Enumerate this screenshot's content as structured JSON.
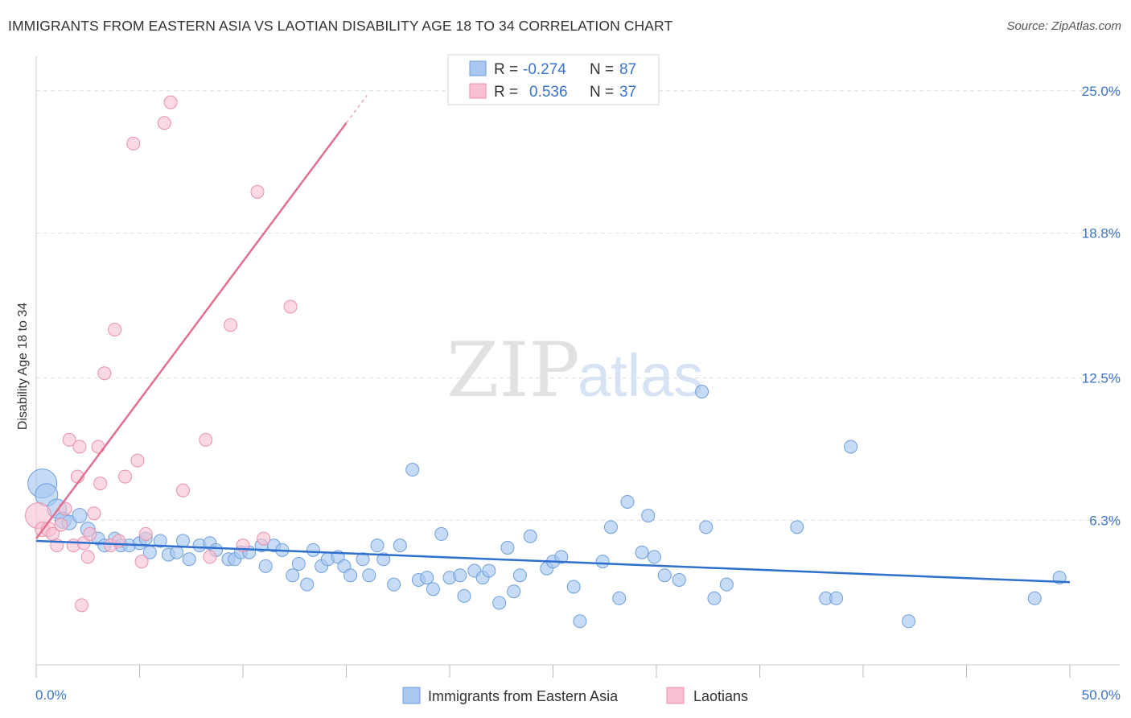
{
  "header": {
    "title": "IMMIGRANTS FROM EASTERN ASIA VS LAOTIAN DISABILITY AGE 18 TO 34 CORRELATION CHART",
    "source": "Source: ZipAtlas.com"
  },
  "watermark": {
    "zip": "ZIP",
    "atlas": "atlas"
  },
  "legend_top": {
    "rows": [
      {
        "r_label": "R =",
        "r_value": "-0.274",
        "n_label": "N =",
        "n_value": "87"
      },
      {
        "r_label": "R =",
        "r_value": "0.536",
        "n_label": "N =",
        "n_value": "37"
      }
    ]
  },
  "colors": {
    "blue_fill": "#a8c8f0",
    "blue_stroke": "#6f9fdc",
    "blue_line": "#2f6fce",
    "pink_fill": "#f8c0d2",
    "pink_stroke": "#e890ac",
    "pink_line": "#e0708f",
    "axis_text": "#3a74c8",
    "grid": "#dddddd"
  },
  "chart_data": {
    "type": "scatter",
    "title": "IMMIGRANTS FROM EASTERN ASIA VS LAOTIAN DISABILITY AGE 18 TO 34 CORRELATION CHART",
    "xlabel": "",
    "ylabel": "Disability Age 18 to 34",
    "xlim": [
      0,
      50
    ],
    "ylim": [
      0,
      26.5
    ],
    "x_tick_labels": [
      "0.0%",
      "50.0%"
    ],
    "y_ticks": [
      6.3,
      12.5,
      18.8,
      25.0
    ],
    "y_tick_labels": [
      "6.3%",
      "12.5%",
      "18.8%",
      "25.0%"
    ],
    "grid": true,
    "legend_placement": "top-center",
    "series": [
      {
        "name": "Immigrants from Eastern Asia",
        "color": "#a8c8f0",
        "r": -0.274,
        "n": 87,
        "trend": {
          "x": [
            0,
            50
          ],
          "y": [
            5.4,
            3.6
          ]
        },
        "points": [
          [
            0.3,
            7.9,
            18
          ],
          [
            0.5,
            7.4,
            14
          ],
          [
            1.0,
            6.8,
            12
          ],
          [
            1.3,
            6.3,
            10
          ],
          [
            1.6,
            6.2,
            9
          ],
          [
            2.1,
            6.5,
            9
          ],
          [
            2.5,
            5.9,
            9
          ],
          [
            3.0,
            5.5,
            8
          ],
          [
            3.3,
            5.2,
            8
          ],
          [
            3.8,
            5.5,
            8
          ],
          [
            4.1,
            5.2,
            8
          ],
          [
            4.5,
            5.2,
            8
          ],
          [
            5.0,
            5.3,
            8
          ],
          [
            5.3,
            5.5,
            8
          ],
          [
            5.5,
            4.9,
            8
          ],
          [
            6.0,
            5.4,
            8
          ],
          [
            6.4,
            4.8,
            8
          ],
          [
            6.8,
            4.9,
            8
          ],
          [
            7.1,
            5.4,
            8
          ],
          [
            7.4,
            4.6,
            8
          ],
          [
            7.9,
            5.2,
            8
          ],
          [
            8.4,
            5.3,
            8
          ],
          [
            8.7,
            5.0,
            8
          ],
          [
            9.3,
            4.6,
            8
          ],
          [
            9.6,
            4.6,
            8
          ],
          [
            9.9,
            4.9,
            8
          ],
          [
            10.3,
            4.9,
            8
          ],
          [
            10.9,
            5.2,
            8
          ],
          [
            11.1,
            4.3,
            8
          ],
          [
            11.5,
            5.2,
            8
          ],
          [
            11.9,
            5.0,
            8
          ],
          [
            12.4,
            3.9,
            8
          ],
          [
            12.7,
            4.4,
            8
          ],
          [
            13.1,
            3.5,
            8
          ],
          [
            13.4,
            5.0,
            8
          ],
          [
            13.8,
            4.3,
            8
          ],
          [
            14.1,
            4.6,
            8
          ],
          [
            14.6,
            4.7,
            8
          ],
          [
            14.9,
            4.3,
            8
          ],
          [
            15.2,
            3.9,
            8
          ],
          [
            15.8,
            4.6,
            8
          ],
          [
            16.1,
            3.9,
            8
          ],
          [
            16.5,
            5.2,
            8
          ],
          [
            16.8,
            4.6,
            8
          ],
          [
            17.3,
            3.5,
            8
          ],
          [
            17.6,
            5.2,
            8
          ],
          [
            18.2,
            8.5,
            8
          ],
          [
            18.5,
            3.7,
            8
          ],
          [
            18.9,
            3.8,
            8
          ],
          [
            19.2,
            3.3,
            8
          ],
          [
            19.6,
            5.7,
            8
          ],
          [
            20.0,
            3.8,
            8
          ],
          [
            20.5,
            3.9,
            8
          ],
          [
            20.7,
            3.0,
            8
          ],
          [
            21.2,
            4.1,
            8
          ],
          [
            21.6,
            3.8,
            8
          ],
          [
            21.9,
            4.1,
            8
          ],
          [
            22.4,
            2.7,
            8
          ],
          [
            22.8,
            5.1,
            8
          ],
          [
            23.1,
            3.2,
            8
          ],
          [
            23.4,
            3.9,
            8
          ],
          [
            23.9,
            5.6,
            8
          ],
          [
            24.7,
            4.2,
            8
          ],
          [
            25.0,
            4.5,
            8
          ],
          [
            25.4,
            4.7,
            8
          ],
          [
            26.0,
            3.4,
            8
          ],
          [
            26.3,
            1.9,
            8
          ],
          [
            27.4,
            4.5,
            8
          ],
          [
            27.8,
            6.0,
            8
          ],
          [
            28.2,
            2.9,
            8
          ],
          [
            28.6,
            7.1,
            8
          ],
          [
            29.3,
            4.9,
            8
          ],
          [
            29.6,
            6.5,
            8
          ],
          [
            29.9,
            4.7,
            8
          ],
          [
            30.4,
            3.9,
            8
          ],
          [
            31.1,
            3.7,
            8
          ],
          [
            32.2,
            11.9,
            8
          ],
          [
            32.4,
            6.0,
            8
          ],
          [
            32.8,
            2.9,
            8
          ],
          [
            33.4,
            3.5,
            8
          ],
          [
            36.8,
            6.0,
            8
          ],
          [
            38.2,
            2.9,
            8
          ],
          [
            38.7,
            2.9,
            8
          ],
          [
            39.4,
            9.5,
            8
          ],
          [
            42.2,
            1.9,
            8
          ],
          [
            48.3,
            2.9,
            8
          ],
          [
            49.5,
            3.8,
            8
          ]
        ]
      },
      {
        "name": "Laotians",
        "color": "#f8c0d2",
        "r": 0.536,
        "n": 37,
        "trend": {
          "x": [
            0,
            15.0
          ],
          "y": [
            5.5,
            23.6
          ]
        },
        "trend_dashed": {
          "x": [
            15.0,
            16.0
          ],
          "y": [
            23.6,
            24.8
          ]
        },
        "points": [
          [
            0.1,
            6.5,
            16
          ],
          [
            0.3,
            5.9,
            9
          ],
          [
            0.6,
            5.9,
            9
          ],
          [
            0.8,
            5.7,
            8
          ],
          [
            1.0,
            5.2,
            8
          ],
          [
            1.2,
            6.1,
            8
          ],
          [
            1.4,
            6.8,
            8
          ],
          [
            1.6,
            9.8,
            8
          ],
          [
            1.8,
            5.2,
            8
          ],
          [
            2.0,
            8.2,
            8
          ],
          [
            2.1,
            9.5,
            8
          ],
          [
            2.2,
            2.6,
            8
          ],
          [
            2.3,
            5.3,
            8
          ],
          [
            2.5,
            4.7,
            8
          ],
          [
            2.6,
            5.7,
            8
          ],
          [
            2.8,
            6.6,
            8
          ],
          [
            3.0,
            9.5,
            8
          ],
          [
            3.1,
            7.9,
            8
          ],
          [
            3.3,
            12.7,
            8
          ],
          [
            3.6,
            5.2,
            8
          ],
          [
            3.8,
            14.6,
            8
          ],
          [
            4.0,
            5.4,
            8
          ],
          [
            4.3,
            8.2,
            8
          ],
          [
            4.7,
            22.7,
            8
          ],
          [
            4.9,
            8.9,
            8
          ],
          [
            5.1,
            4.5,
            8
          ],
          [
            5.3,
            5.7,
            8
          ],
          [
            6.2,
            23.6,
            8
          ],
          [
            6.5,
            24.5,
            8
          ],
          [
            7.1,
            7.6,
            8
          ],
          [
            8.2,
            9.8,
            8
          ],
          [
            8.4,
            4.7,
            8
          ],
          [
            9.4,
            14.8,
            8
          ],
          [
            10.0,
            5.2,
            8
          ],
          [
            10.7,
            20.6,
            8
          ],
          [
            11.0,
            5.5,
            8
          ],
          [
            12.3,
            15.6,
            8
          ]
        ]
      }
    ]
  },
  "bottom_legend": {
    "items": [
      {
        "label": "Immigrants from Eastern Asia"
      },
      {
        "label": "Laotians"
      }
    ]
  }
}
